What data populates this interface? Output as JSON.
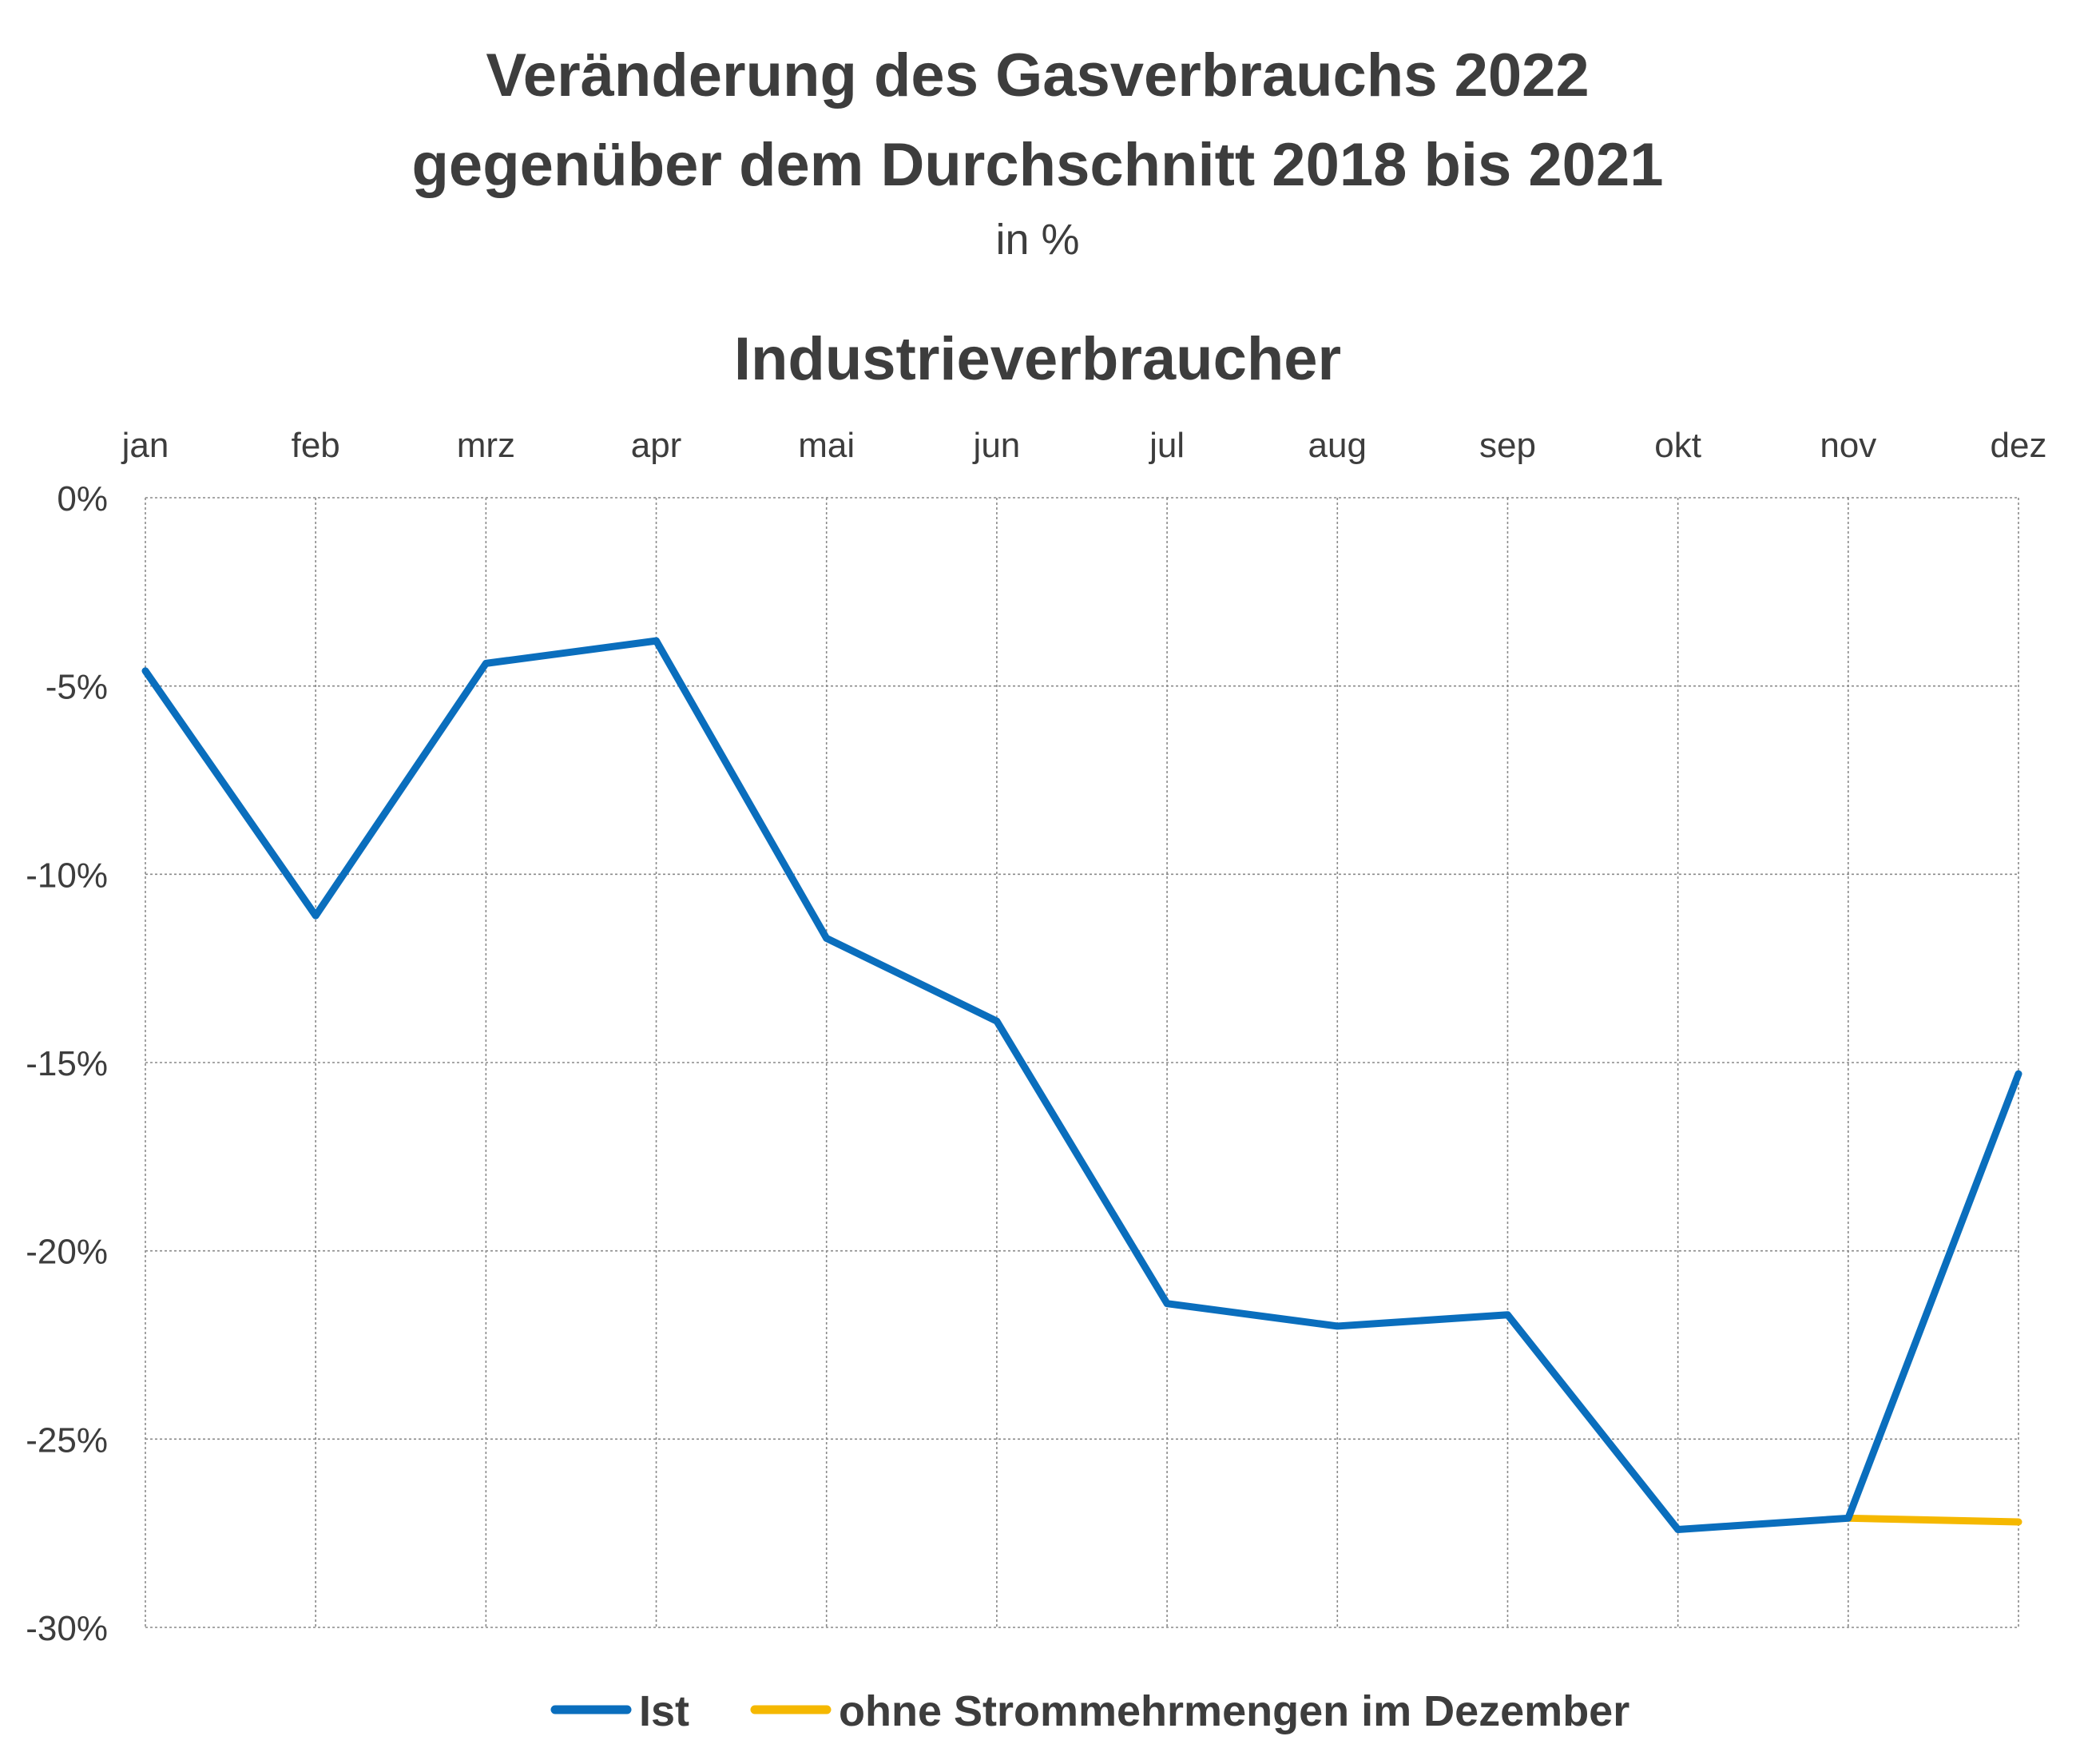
{
  "chart_data": {
    "type": "line",
    "title": "Veränderung des Gasverbrauchs 2022",
    "title_line2": "gegenüber dem Durchschnitt 2018 bis 2021",
    "unit": "in %",
    "subtitle": "Industrieverbraucher",
    "categories": [
      "jan",
      "feb",
      "mrz",
      "apr",
      "mai",
      "jun",
      "jul",
      "aug",
      "sep",
      "okt",
      "nov",
      "dez"
    ],
    "x_axis_position": "top",
    "ylim": [
      -30,
      0
    ],
    "yticks": [
      0,
      -5,
      -10,
      -15,
      -20,
      -25,
      -30
    ],
    "ytick_labels": [
      "0%",
      "-5%",
      "-10%",
      "-15%",
      "-20%",
      "-25%",
      "-30%"
    ],
    "grid": true,
    "legend_position": "bottom",
    "series": [
      {
        "name": "Ist",
        "color": "#0a6ebd",
        "values": [
          -4.6,
          -11.1,
          -4.4,
          -3.8,
          -11.7,
          -13.9,
          -21.4,
          -22.0,
          -21.7,
          -27.4,
          -27.1,
          -15.3
        ]
      },
      {
        "name": "ohne Strommehrmengen im Dezember",
        "color": "#f5b800",
        "values": [
          null,
          null,
          null,
          null,
          null,
          null,
          null,
          null,
          null,
          null,
          -27.1,
          -27.2
        ]
      }
    ]
  }
}
